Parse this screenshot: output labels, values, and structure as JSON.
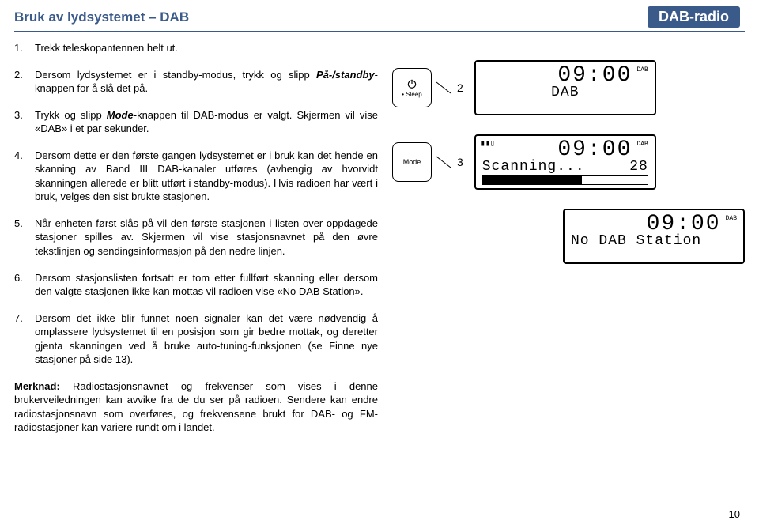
{
  "header": {
    "left": "Bruk av lydsystemet – DAB",
    "right": "DAB-radio"
  },
  "steps": [
    {
      "text": "Trekk teleskopantennen helt ut."
    },
    {
      "text": "Dersom lydsystemet er i standby-modus, trykk og slipp <span class='em'>På-/standby</span>-knappen for å slå det på."
    },
    {
      "text": "Trykk og slipp <span class='em'>Mode</span>-knappen til DAB-modus er valgt. Skjermen vil vise «DAB» i et par sekunder."
    },
    {
      "text": "Dersom dette er den første gangen lydsystemet er i bruk kan det hende en skanning av Band III DAB-kanaler utføres (avhengig av hvorvidt skanningen allerede er blitt utført i standby-modus). Hvis radioen har vært i bruk, velges den sist brukte stasjonen."
    },
    {
      "text": "Når enheten først slås på vil den første stasjonen i listen over oppdagede stasjoner spilles av. Skjermen vil vise stasjonsnavnet på den øvre tekstlinjen og sendingsinformasjon på den nedre linjen."
    },
    {
      "text": "Dersom stasjonslisten fortsatt er tom etter fullført skanning eller dersom den valgte stasjonen ikke kan mottas vil radioen vise «No DAB Station»."
    },
    {
      "text": "Dersom det ikke blir funnet noen signaler kan det være nødvendig å omplassere lydsystemet til en posisjon som gir bedre mottak, og deretter gjenta skanningen ved å bruke auto-tuning-funksjonen (se Finne nye stasjoner på side 13)."
    }
  ],
  "note_label": "Merknad:",
  "note_text": "Radiostasjonsnavnet og frekvenser som vises i denne brukerveiledningen kan avvike fra de du ser på radioen. Sendere kan endre radiostasjonsnavn som overføres, og frekvensene brukt for DAB- og FM-radiostasjoner kan variere rundt om i landet.",
  "buttons": {
    "sleep": {
      "sub": "Sleep",
      "callout": "2"
    },
    "mode": {
      "label": "Mode",
      "callout": "3"
    }
  },
  "lcds": {
    "dab": {
      "time": "09:00",
      "tag": "DAB",
      "line2": "DAB"
    },
    "scan": {
      "time": "09:00",
      "tag": "DAB",
      "line2_left": "Scanning...",
      "line2_right": "28",
      "progress_pct": 60,
      "signal_icon": "▮▮▯"
    },
    "nodab": {
      "time": "09:00",
      "tag": "DAB",
      "line2": "No DAB Station"
    }
  },
  "colors": {
    "accent": "#3a5a8a",
    "text": "#000000",
    "bg": "#ffffff"
  },
  "page_number": "10"
}
